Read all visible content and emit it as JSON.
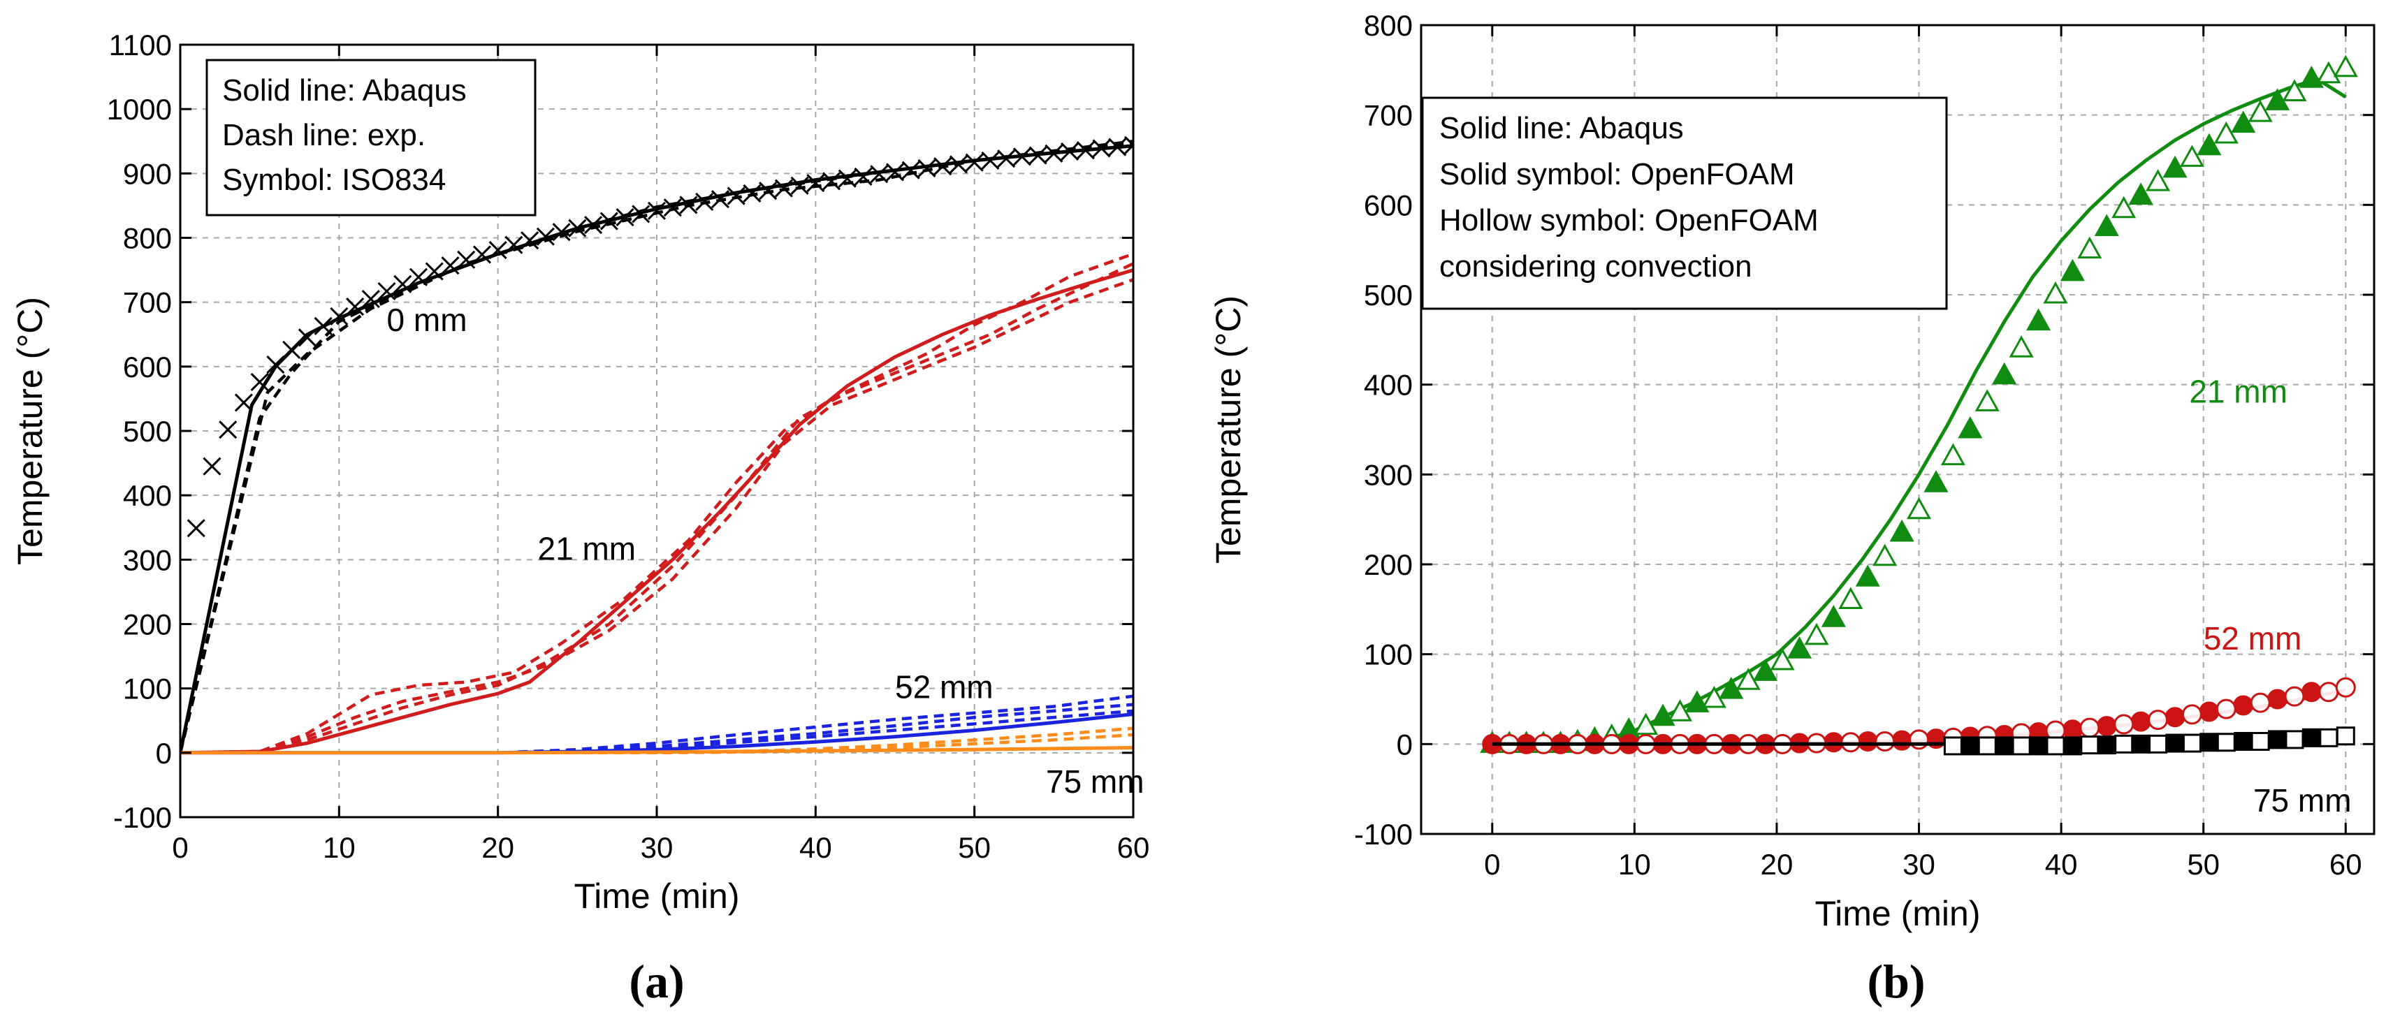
{
  "chart_data": [
    {
      "panel_label": "(a)",
      "type": "line",
      "xlabel": "Time (min)",
      "ylabel": "Temperature (°C)",
      "xlim": [
        0,
        60
      ],
      "ylim": [
        -100,
        1100
      ],
      "xticks": [
        0,
        10,
        20,
        30,
        40,
        50,
        60
      ],
      "yticks": [
        -100,
        0,
        100,
        200,
        300,
        400,
        500,
        600,
        700,
        800,
        900,
        1000,
        1100
      ],
      "grid": true,
      "legend_position": "top-left",
      "legend": [
        "Solid line: Abaqus",
        "Dash line: exp.",
        "Symbol: ISO834"
      ],
      "annotations": [
        {
          "text": "0 mm",
          "x": 13,
          "y": 655
        },
        {
          "text": "21 mm",
          "x": 22.5,
          "y": 300
        },
        {
          "text": "52 mm",
          "x": 45,
          "y": 85
        },
        {
          "text": "75 mm",
          "x": 54.5,
          "y": -62
        }
      ],
      "series": [
        {
          "name": "0 mm Abaqus",
          "style": "solid",
          "color": "#000000",
          "x": [
            0,
            4.5,
            6,
            8,
            10,
            15,
            20,
            25,
            30,
            35,
            40,
            45,
            50,
            55,
            60
          ],
          "y": [
            0,
            540,
            600,
            650,
            675,
            730,
            775,
            815,
            845,
            870,
            890,
            905,
            920,
            932,
            943
          ]
        },
        {
          "name": "0 mm exp. 1",
          "style": "dash",
          "color": "#000000",
          "x": [
            0,
            5,
            7,
            10,
            15,
            20,
            25,
            30,
            35,
            40,
            45,
            50,
            55,
            60
          ],
          "y": [
            0,
            520,
            590,
            670,
            730,
            775,
            815,
            848,
            870,
            888,
            905,
            920,
            935,
            950
          ]
        },
        {
          "name": "0 mm exp. 2",
          "style": "dash",
          "color": "#000000",
          "x": [
            0,
            5.5,
            8,
            12,
            18,
            25,
            32,
            38,
            44,
            50,
            55,
            60
          ],
          "y": [
            0,
            560,
            620,
            690,
            760,
            810,
            850,
            875,
            890,
            920,
            935,
            948
          ]
        },
        {
          "name": "ISO834",
          "style": "x-marker",
          "color": "#000000",
          "x": [
            1,
            2,
            3,
            4,
            5,
            6,
            7,
            8,
            9,
            10,
            11,
            12,
            13,
            14,
            15,
            16,
            17,
            18,
            19,
            20,
            21,
            22,
            23,
            24,
            25,
            26,
            27,
            28,
            29,
            30,
            31,
            32,
            33,
            34,
            35,
            36,
            37,
            38,
            39,
            40,
            41,
            42,
            43,
            44,
            45,
            46,
            47,
            48,
            49,
            50,
            51,
            52,
            53,
            54,
            55,
            56,
            57,
            58,
            59,
            60
          ],
          "y": [
            349,
            445,
            502,
            544,
            576,
            603,
            626,
            645,
            663,
            678,
            693,
            705,
            717,
            728,
            739,
            748,
            757,
            766,
            774,
            781,
            789,
            796,
            802,
            809,
            815,
            820,
            826,
            832,
            837,
            842,
            847,
            851,
            856,
            860,
            865,
            869,
            873,
            877,
            881,
            885,
            888,
            892,
            895,
            899,
            902,
            905,
            908,
            911,
            914,
            917,
            920,
            923,
            926,
            928,
            931,
            934,
            936,
            939,
            941,
            944
          ]
        },
        {
          "name": "21 mm Abaqus",
          "style": "solid",
          "color": "#d01c1c",
          "x": [
            0,
            5,
            8,
            11,
            14,
            17,
            20,
            22,
            25,
            28,
            31,
            34,
            37,
            39,
            42,
            45,
            48,
            51,
            54,
            57,
            60
          ],
          "y": [
            0,
            2,
            15,
            35,
            55,
            75,
            92,
            110,
            170,
            235,
            300,
            375,
            455,
            510,
            570,
            615,
            650,
            680,
            705,
            728,
            750
          ]
        },
        {
          "name": "21 mm exp. 1",
          "style": "dash",
          "color": "#d01c1c",
          "x": [
            0,
            5,
            8,
            10,
            12,
            15,
            18,
            21,
            24,
            28,
            32,
            35,
            38,
            41,
            44,
            47,
            50,
            53,
            56,
            60
          ],
          "y": [
            0,
            2,
            30,
            60,
            90,
            105,
            110,
            125,
            170,
            240,
            330,
            420,
            500,
            550,
            585,
            620,
            665,
            700,
            740,
            775
          ]
        },
        {
          "name": "21 mm exp. 2",
          "style": "dash",
          "color": "#d01c1c",
          "x": [
            0,
            5,
            8,
            11,
            14,
            17,
            20,
            23,
            27,
            31,
            35,
            38,
            41,
            44,
            47,
            50,
            53,
            56,
            60
          ],
          "y": [
            0,
            2,
            25,
            55,
            80,
            95,
            110,
            135,
            190,
            270,
            380,
            480,
            540,
            570,
            600,
            630,
            665,
            700,
            735
          ]
        },
        {
          "name": "21 mm exp. 3",
          "style": "dash",
          "color": "#d01c1c",
          "x": [
            0,
            5,
            8,
            11,
            14,
            17,
            20,
            23,
            27,
            31,
            35,
            39,
            42,
            45,
            48,
            51,
            54,
            57,
            60
          ],
          "y": [
            0,
            2,
            20,
            45,
            70,
            90,
            105,
            140,
            200,
            290,
            400,
            520,
            560,
            590,
            620,
            650,
            690,
            725,
            760
          ]
        },
        {
          "name": "52 mm Abaqus",
          "style": "solid",
          "color": "#1a24e0",
          "x": [
            0,
            10,
            20,
            25,
            30,
            35,
            40,
            45,
            50,
            55,
            60
          ],
          "y": [
            0,
            0,
            0,
            2,
            5,
            10,
            17,
            25,
            35,
            47,
            60
          ]
        },
        {
          "name": "52 mm exp. 1",
          "style": "dash",
          "color": "#1a24e0",
          "x": [
            0,
            20,
            25,
            30,
            35,
            40,
            45,
            50,
            55,
            60
          ],
          "y": [
            0,
            0,
            5,
            15,
            28,
            40,
            52,
            62,
            72,
            88
          ]
        },
        {
          "name": "52 mm exp. 2",
          "style": "dash",
          "color": "#1a24e0",
          "x": [
            0,
            20,
            25,
            30,
            35,
            40,
            45,
            50,
            55,
            60
          ],
          "y": [
            0,
            0,
            3,
            10,
            20,
            30,
            42,
            55,
            65,
            75
          ]
        },
        {
          "name": "52 mm exp. 3",
          "style": "dash",
          "color": "#1a24e0",
          "x": [
            0,
            20,
            25,
            30,
            35,
            40,
            45,
            50,
            55,
            60
          ],
          "y": [
            0,
            0,
            2,
            8,
            16,
            25,
            35,
            45,
            55,
            65
          ]
        },
        {
          "name": "75 mm Abaqus",
          "style": "solid",
          "color": "#ff8c1a",
          "x": [
            0,
            20,
            30,
            40,
            50,
            60
          ],
          "y": [
            0,
            0,
            1,
            3,
            5,
            8
          ]
        },
        {
          "name": "75 mm exp. 1",
          "style": "dash",
          "color": "#ff8c1a",
          "x": [
            0,
            30,
            35,
            40,
            45,
            50,
            55,
            60
          ],
          "y": [
            0,
            0,
            2,
            6,
            12,
            20,
            28,
            38
          ]
        },
        {
          "name": "75 mm exp. 2",
          "style": "dash",
          "color": "#ff8c1a",
          "x": [
            0,
            30,
            35,
            40,
            45,
            50,
            55,
            60
          ],
          "y": [
            0,
            0,
            1,
            4,
            8,
            14,
            20,
            28
          ]
        }
      ]
    },
    {
      "panel_label": "(b)",
      "type": "line",
      "xlabel": "Time (min)",
      "ylabel": "Temperature (°C)",
      "xlim": [
        -5,
        62
      ],
      "ylim": [
        -100,
        800
      ],
      "xticks": [
        0,
        10,
        20,
        30,
        40,
        50,
        60
      ],
      "yticks": [
        -100,
        0,
        100,
        200,
        300,
        400,
        500,
        600,
        700,
        800
      ],
      "grid": true,
      "legend_position": "top-left",
      "legend": [
        "Solid line: Abaqus",
        "Solid symbol: OpenFOAM",
        "Hollow symbol: OpenFOAM",
        "considering convection"
      ],
      "annotations": [
        {
          "text": "21 mm",
          "x": 49,
          "y": 380
        },
        {
          "text": "52 mm",
          "x": 50,
          "y": 105
        },
        {
          "text": "75 mm",
          "x": 53.5,
          "y": -75
        }
      ],
      "series": [
        {
          "name": "21 mm Abaqus",
          "style": "solid",
          "color": "#108c10",
          "x": [
            0,
            5,
            8,
            10,
            12,
            14,
            16,
            18,
            20,
            22,
            24,
            26,
            28,
            30,
            32,
            34,
            36,
            38,
            40,
            42,
            44,
            46,
            48,
            50,
            52,
            54,
            56,
            58,
            60
          ],
          "y": [
            0,
            0,
            5,
            15,
            30,
            45,
            62,
            80,
            100,
            130,
            165,
            205,
            250,
            300,
            355,
            415,
            470,
            520,
            560,
            595,
            625,
            650,
            672,
            690,
            705,
            718,
            730,
            740,
            720
          ]
        },
        {
          "name": "21 mm OpenFOAM",
          "style": "filled-triangle",
          "color": "#108c10",
          "x": [
            0,
            2.4,
            4.8,
            7.2,
            9.6,
            12,
            14.4,
            16.8,
            19.2,
            21.6,
            24,
            26.4,
            28.8,
            31.2,
            33.6,
            36,
            38.4,
            40.8,
            43.2,
            45.6,
            48,
            50.4,
            52.8,
            55.2,
            57.6
          ],
          "y": [
            0,
            0,
            0,
            5,
            15,
            30,
            45,
            60,
            80,
            105,
            140,
            185,
            235,
            290,
            350,
            410,
            470,
            525,
            575,
            610,
            640,
            665,
            690,
            715,
            740
          ]
        },
        {
          "name": "21 mm OpenFOAM considering convection",
          "style": "hollow-triangle",
          "color": "#108c10",
          "x": [
            1.2,
            3.6,
            6,
            8.4,
            10.8,
            13.2,
            15.6,
            18,
            20.4,
            22.8,
            25.2,
            27.6,
            30,
            32.4,
            34.8,
            37.2,
            39.6,
            42,
            44.4,
            46.8,
            49.2,
            51.6,
            54,
            56.4,
            58.8,
            60
          ],
          "y": [
            0,
            0,
            2,
            8,
            20,
            35,
            50,
            70,
            92,
            120,
            160,
            208,
            260,
            320,
            380,
            440,
            500,
            550,
            595,
            625,
            652,
            678,
            702,
            725,
            745,
            752
          ]
        },
        {
          "name": "52 mm Abaqus",
          "style": "solid",
          "color": "#cc1414",
          "x": [
            0,
            10,
            20,
            25,
            30,
            35,
            40,
            45,
            50,
            55,
            60
          ],
          "y": [
            0,
            0,
            0,
            2,
            4,
            8,
            14,
            22,
            32,
            44,
            60
          ]
        },
        {
          "name": "52 mm OpenFOAM",
          "style": "filled-circle",
          "color": "#cc1414",
          "x": [
            0,
            2.4,
            4.8,
            7.2,
            9.6,
            12,
            14.4,
            16.8,
            19.2,
            21.6,
            24,
            26.4,
            28.8,
            31.2,
            33.6,
            36,
            38.4,
            40.8,
            43.2,
            45.6,
            48,
            50.4,
            52.8,
            55.2,
            57.6
          ],
          "y": [
            0,
            0,
            0,
            0,
            0,
            0,
            0,
            0,
            0,
            1,
            2,
            3,
            4,
            6,
            8,
            10,
            13,
            16,
            20,
            25,
            30,
            36,
            43,
            50,
            58
          ]
        },
        {
          "name": "52 mm OpenFOAM considering convection",
          "style": "hollow-circle",
          "color": "#cc1414",
          "x": [
            1.2,
            3.6,
            6,
            8.4,
            10.8,
            13.2,
            15.6,
            18,
            20.4,
            22.8,
            25.2,
            27.6,
            30,
            32.4,
            34.8,
            37.2,
            39.6,
            42,
            44.4,
            46.8,
            49.2,
            51.6,
            54,
            56.4,
            58.8,
            60
          ],
          "y": [
            0,
            0,
            0,
            0,
            0,
            0,
            0,
            0,
            0,
            1,
            2,
            3,
            5,
            7,
            9,
            12,
            15,
            18,
            22,
            27,
            33,
            39,
            46,
            53,
            58,
            63
          ]
        },
        {
          "name": "75 mm Abaqus",
          "style": "solid",
          "color": "#000000",
          "x": [
            0,
            20,
            30,
            40,
            50,
            60
          ],
          "y": [
            0,
            0,
            0,
            1,
            4,
            8
          ]
        },
        {
          "name": "75 mm OpenFOAM",
          "style": "filled-square",
          "color": "#000000",
          "x": [
            33.6,
            36,
            38.4,
            40.8,
            43.2,
            45.6,
            48,
            50.4,
            52.8,
            55.2,
            57.6
          ],
          "y": [
            -2,
            -2,
            -2,
            -2,
            -1,
            0,
            1,
            2,
            3,
            5,
            7
          ]
        },
        {
          "name": "75 mm OpenFOAM considering convection",
          "style": "hollow-square",
          "color": "#000000",
          "x": [
            32.4,
            34.8,
            37.2,
            39.6,
            42,
            44.4,
            46.8,
            49.2,
            51.6,
            54,
            56.4,
            58.8,
            60
          ],
          "y": [
            -2,
            -2,
            -2,
            -2,
            -1,
            0,
            0,
            1,
            2,
            3,
            5,
            7,
            9
          ]
        }
      ]
    }
  ]
}
